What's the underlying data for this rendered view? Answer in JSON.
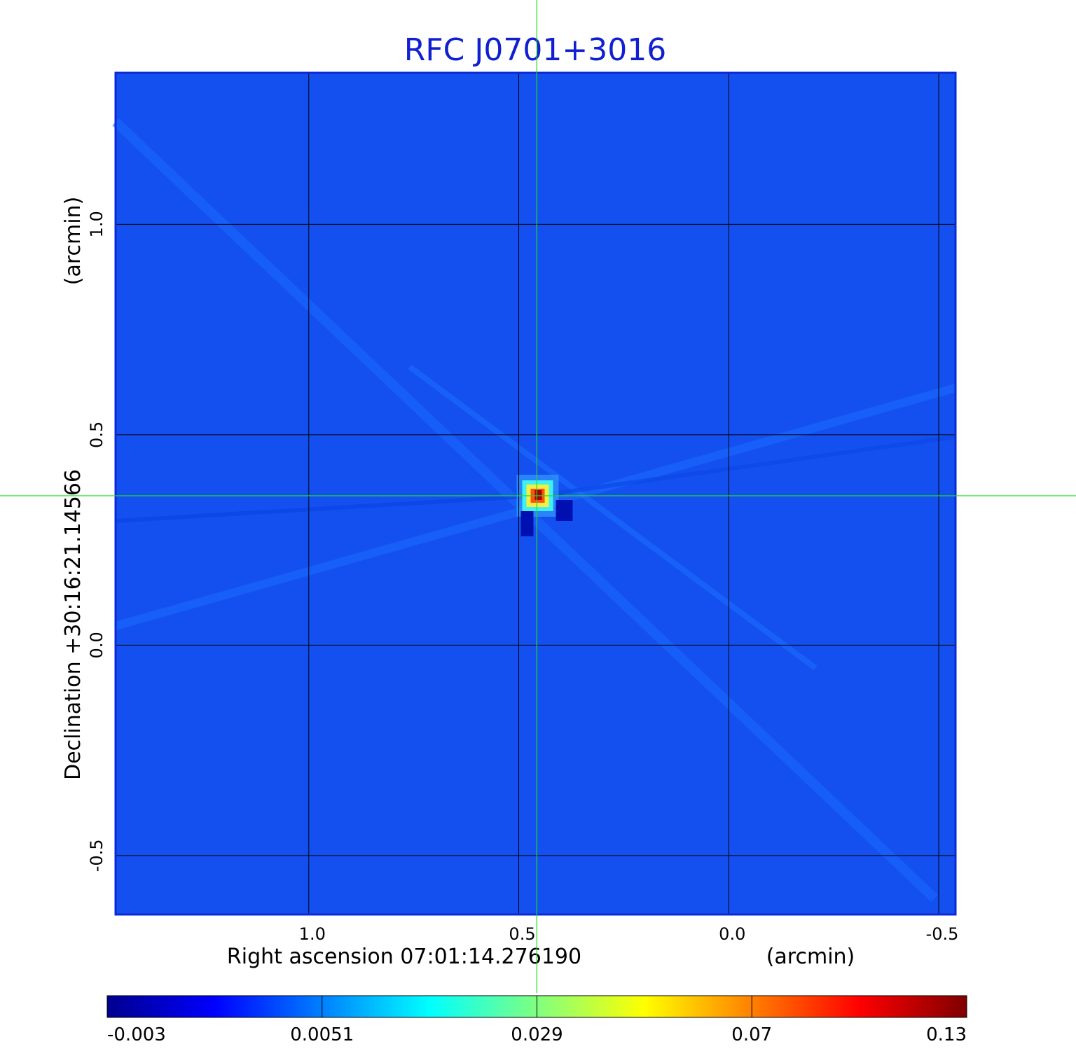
{
  "chart_data": {
    "type": "heatmap",
    "title": "RFC J0701+3016",
    "xlabel": "Right ascension  07:01:14.276190",
    "xunit": "(arcmin)",
    "ylabel": "Declination  +30:16:21.14566",
    "yunit": "(arcmin)",
    "xlim": [
      1.46,
      -0.54
    ],
    "ylim": [
      -0.64,
      1.36
    ],
    "x_ticks": [
      {
        "value": 1.0,
        "label": "1.0"
      },
      {
        "value": 0.5,
        "label": "0.5"
      },
      {
        "value": 0.0,
        "label": "0.0"
      },
      {
        "value": -0.5,
        "label": "-0.5"
      }
    ],
    "y_ticks": [
      {
        "value": 1.0,
        "label": "1.0"
      },
      {
        "value": 0.5,
        "label": "0.5"
      },
      {
        "value": 0.0,
        "label": "0.0"
      },
      {
        "value": -0.5,
        "label": "-0.5"
      }
    ],
    "grid": true,
    "crosshair": {
      "x": 0.457,
      "y": 0.355,
      "color": "#22dd22"
    },
    "source_peak": {
      "x": 0.455,
      "y": 0.355,
      "value": 0.13
    },
    "background_value": 0.0015,
    "colormap": "jet",
    "colorbar": {
      "ticks": [
        "-0.003",
        "0.0051",
        "0.029",
        "0.07",
        "0.13"
      ],
      "stops": [
        "#00008f",
        "#0000ff",
        "#0080ff",
        "#00ffff",
        "#80ff80",
        "#ffff00",
        "#ff8000",
        "#ff0000",
        "#800000"
      ]
    }
  }
}
